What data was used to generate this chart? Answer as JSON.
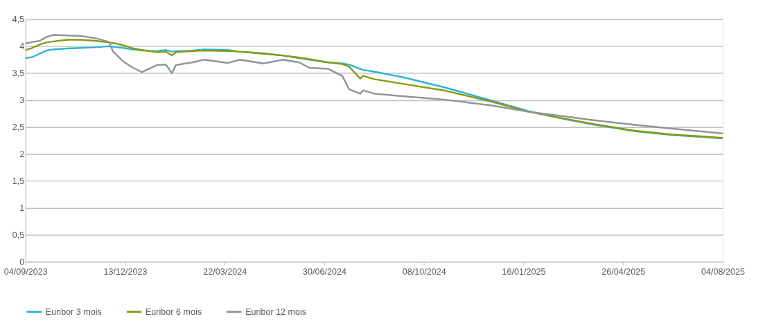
{
  "chart_data": {
    "type": "line",
    "x": [
      "2023-09-04",
      "2023-09-11",
      "2023-09-18",
      "2023-09-25",
      "2023-10-02",
      "2023-10-16",
      "2023-10-30",
      "2023-11-13",
      "2023-11-27",
      "2023-12-01",
      "2023-12-11",
      "2023-12-21",
      "2023-12-30",
      "2024-01-14",
      "2024-01-23",
      "2024-01-29",
      "2024-02-02",
      "2024-02-18",
      "2024-03-01",
      "2024-03-25",
      "2024-04-06",
      "2024-04-30",
      "2024-05-19",
      "2024-06-05",
      "2024-06-15",
      "2024-07-04",
      "2024-07-18",
      "2024-07-25",
      "2024-08-05",
      "2024-08-08",
      "2024-08-19",
      "2024-09-18",
      "2024-10-28",
      "2024-12-15",
      "2025-01-22",
      "2025-02-25",
      "2025-03-26",
      "2025-05-08",
      "2025-06-15",
      "2025-08-04"
    ],
    "series": [
      {
        "name": "Euribor 3 mois",
        "color": "#29b6d8",
        "values": [
          3.78,
          3.8,
          3.86,
          3.92,
          3.94,
          3.96,
          3.97,
          3.98,
          4.0,
          3.99,
          3.97,
          3.94,
          3.92,
          3.91,
          3.93,
          3.9,
          3.91,
          3.92,
          3.94,
          3.93,
          3.9,
          3.87,
          3.83,
          3.78,
          3.75,
          3.7,
          3.68,
          3.66,
          3.58,
          3.56,
          3.53,
          3.42,
          3.24,
          2.99,
          2.79,
          2.65,
          2.55,
          2.42,
          2.35,
          2.29
        ]
      },
      {
        "name": "Euribor 6 mois",
        "color": "#8a9a0a",
        "values": [
          3.93,
          3.97,
          4.03,
          4.07,
          4.09,
          4.12,
          4.12,
          4.1,
          4.07,
          4.06,
          4.02,
          3.96,
          3.93,
          3.89,
          3.9,
          3.83,
          3.89,
          3.91,
          3.92,
          3.91,
          3.9,
          3.86,
          3.83,
          3.79,
          3.76,
          3.7,
          3.67,
          3.62,
          3.4,
          3.45,
          3.39,
          3.3,
          3.18,
          2.97,
          2.78,
          2.66,
          2.56,
          2.43,
          2.36,
          2.3
        ]
      },
      {
        "name": "Euribor 12 mois",
        "color": "#8c959d",
        "values": [
          4.05,
          4.08,
          4.1,
          4.17,
          4.21,
          4.2,
          4.19,
          4.15,
          4.08,
          3.9,
          3.72,
          3.6,
          3.52,
          3.65,
          3.66,
          3.5,
          3.65,
          3.7,
          3.75,
          3.69,
          3.75,
          3.68,
          3.75,
          3.7,
          3.6,
          3.58,
          3.45,
          3.2,
          3.12,
          3.18,
          3.12,
          3.07,
          3.01,
          2.9,
          2.78,
          2.7,
          2.63,
          2.54,
          2.47,
          2.38
        ]
      }
    ],
    "xlim": [
      "2023-09-04",
      "2025-08-04"
    ],
    "xticks": [
      {
        "value": "2023-09-04",
        "label": "04/09/2023"
      },
      {
        "value": "2023-12-13",
        "label": "13/12/2023"
      },
      {
        "value": "2024-03-22",
        "label": "22/03/2024"
      },
      {
        "value": "2024-06-30",
        "label": "30/06/2024"
      },
      {
        "value": "2024-10-08",
        "label": "08/10/2024"
      },
      {
        "value": "2025-01-16",
        "label": "16/01/2025"
      },
      {
        "value": "2025-04-26",
        "label": "26/04/2025"
      },
      {
        "value": "2025-08-04",
        "label": "04/08/2025"
      }
    ],
    "ylim": [
      0,
      4.5
    ],
    "yticks": [
      0,
      {
        "value": 0.5,
        "label": "0,5"
      },
      1,
      {
        "value": 1.5,
        "label": "1,5"
      },
      2,
      {
        "value": 2.5,
        "label": "2,5"
      },
      3,
      {
        "value": 3.5,
        "label": "3,5"
      },
      4,
      {
        "value": 4.5,
        "label": "4,5"
      }
    ],
    "grid": "y",
    "legend": "bottom",
    "marker": "none",
    "line_style": "solid"
  }
}
